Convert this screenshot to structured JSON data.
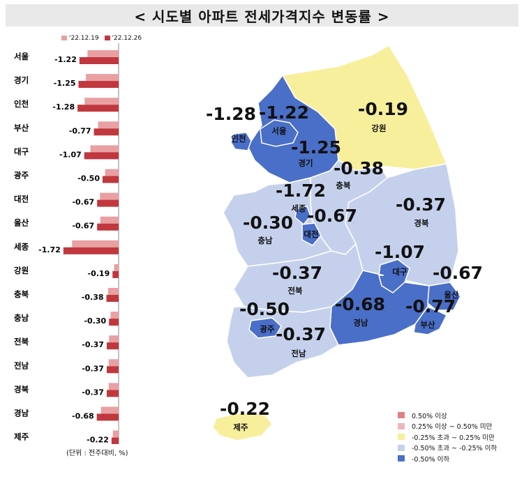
{
  "title": "< 시도별 아파트 전세가격지수 변동률 >",
  "legend_weeks": [
    "'22.12.19",
    "'22.12.26"
  ],
  "unit_note": "(단위 : 전주대비, %)",
  "colors": {
    "prev_week_bar": "#e9a0a3",
    "curr_week_bar": "#c0373d",
    "over_050": "#e07f86",
    "from_025_to_050": "#f0b5b8",
    "near_zero": "#f8ef9c",
    "from_m050_to_m025": "#c5d1ec",
    "below_m050": "#4a6fc8"
  },
  "chart_data": {
    "type": "bar",
    "orientation": "horizontal",
    "categories": [
      "서울",
      "경기",
      "인천",
      "부산",
      "대구",
      "광주",
      "대전",
      "울산",
      "세종",
      "강원",
      "충북",
      "충남",
      "전북",
      "전남",
      "경북",
      "경남",
      "제주"
    ],
    "series": [
      {
        "name": "'22.12.19",
        "values": [
          -0.97,
          -1.02,
          -1.06,
          -0.64,
          -0.88,
          -0.42,
          -0.58,
          -0.57,
          -1.45,
          -0.14,
          -0.33,
          -0.25,
          -0.3,
          -0.31,
          -0.31,
          -0.55,
          -0.18
        ]
      },
      {
        "name": "'22.12.26",
        "values": [
          -1.22,
          -1.25,
          -1.28,
          -0.77,
          -1.07,
          -0.5,
          -0.67,
          -0.67,
          -1.72,
          -0.19,
          -0.38,
          -0.3,
          -0.37,
          -0.37,
          -0.37,
          -0.68,
          -0.22
        ]
      }
    ],
    "value_labels": [
      "-1.22",
      "-1.25",
      "-1.28",
      "-0.77",
      "-1.07",
      "-0.50",
      "-0.67",
      "-0.67",
      "-1.72",
      "-0.19",
      "-0.38",
      "-0.30",
      "-0.37",
      "-0.37",
      "-0.37",
      "-0.68",
      "-0.22"
    ]
  },
  "map": {
    "regions": [
      {
        "key": "seoul",
        "name": "서울",
        "value": "-1.22",
        "class": "below_m050"
      },
      {
        "key": "gyeonggi",
        "name": "경기",
        "value": "-1.25",
        "class": "below_m050"
      },
      {
        "key": "incheon",
        "name": "인천",
        "value": "-1.28",
        "class": "below_m050"
      },
      {
        "key": "gangwon",
        "name": "강원",
        "value": "-0.19",
        "class": "near_zero"
      },
      {
        "key": "chungbuk",
        "name": "충북",
        "value": "-0.38",
        "class": "from_m050_to_m025"
      },
      {
        "key": "sejong",
        "name": "세종",
        "value": "-1.72",
        "class": "below_m050"
      },
      {
        "key": "daejeon",
        "name": "대전",
        "value": "-0.67",
        "class": "below_m050"
      },
      {
        "key": "chungnam",
        "name": "충남",
        "value": "-0.30",
        "class": "from_m050_to_m025"
      },
      {
        "key": "gyeongbuk",
        "name": "경북",
        "value": "-0.37",
        "class": "from_m050_to_m025"
      },
      {
        "key": "daegu",
        "name": "대구",
        "value": "-1.07",
        "class": "below_m050"
      },
      {
        "key": "ulsan",
        "name": "울산",
        "value": "-0.67",
        "class": "below_m050"
      },
      {
        "key": "jeonbuk",
        "name": "전북",
        "value": "-0.37",
        "class": "from_m050_to_m025"
      },
      {
        "key": "gwangju",
        "name": "광주",
        "value": "-0.50",
        "class": "below_m050"
      },
      {
        "key": "jeonnam",
        "name": "전남",
        "value": "-0.37",
        "class": "from_m050_to_m025"
      },
      {
        "key": "gyeongnam",
        "name": "경남",
        "value": "-0.68",
        "class": "below_m050"
      },
      {
        "key": "busan",
        "name": "부산",
        "value": "-0.77",
        "class": "below_m050"
      },
      {
        "key": "jeju",
        "name": "제주",
        "value": "-0.22",
        "class": "near_zero"
      }
    ],
    "legend": [
      {
        "label": "0.50% 이상",
        "class": "over_050"
      },
      {
        "label": "0.25% 이상 ~ 0.50% 미만",
        "class": "from_025_to_050"
      },
      {
        "label": "-0.25% 초과 ~ 0.25% 미만",
        "class": "near_zero"
      },
      {
        "label": "-0.50% 초과 ~ -0.25% 이하",
        "class": "from_m050_to_m025"
      },
      {
        "label": "-0.50% 이하",
        "class": "below_m050"
      }
    ]
  }
}
